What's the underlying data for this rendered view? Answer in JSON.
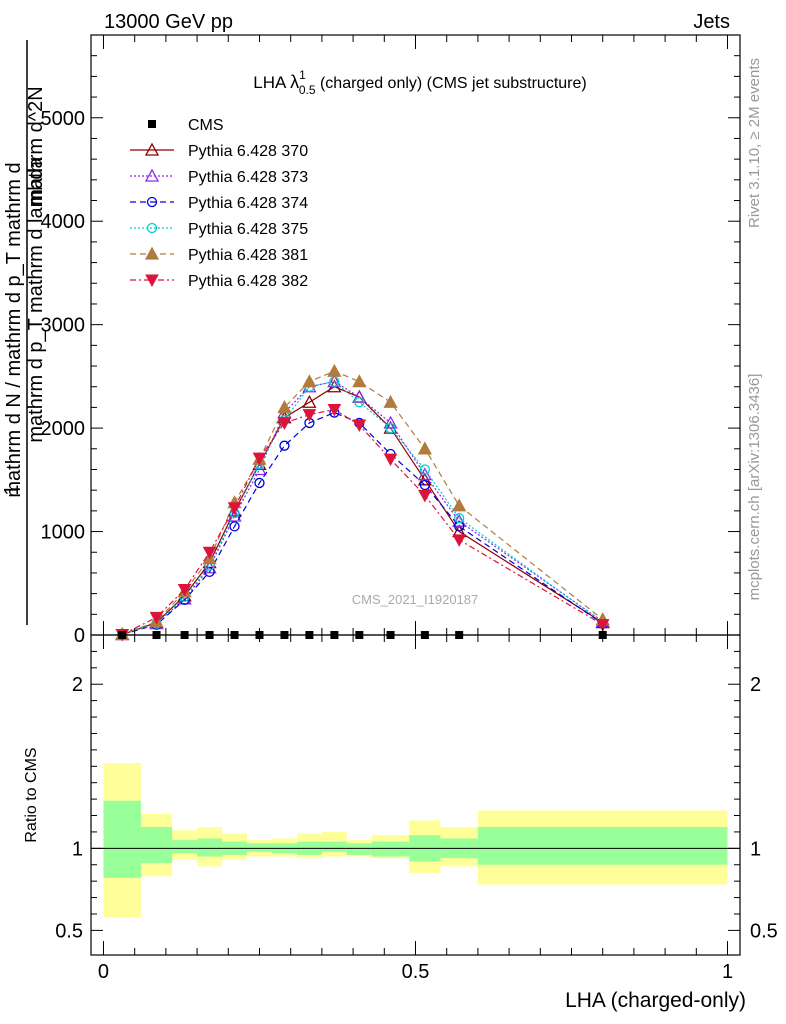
{
  "header": {
    "left": "13000 GeV pp",
    "right": "Jets"
  },
  "side_labels": {
    "top": "Rivet 3.1.10, ≥ 2M events",
    "bottom": "mcplots.cern.ch [arXiv:1306.3436]"
  },
  "watermark": "CMS_2021_I1920187",
  "chart_data": {
    "type": "line",
    "title": {
      "prefix": "LHA ",
      "lambda": "λ",
      "sup": "1",
      "sub": "0.5",
      "suffix": " (charged only) (CMS jet substructure)"
    },
    "xlabel": "LHA (charged-only)",
    "ylabel": {
      "numerator": "1",
      "denominator_lines": [
        "mathrm d N / mathrm d p_T mathrm d",
        "mathrm d^2N",
        "mathrm d p_T mathrm d lambda"
      ]
    },
    "ratio_ylabel": "Ratio to CMS",
    "xlim": [
      -0.02,
      1.02
    ],
    "ylim": [
      0,
      5800
    ],
    "ratio_ylim": [
      0.35,
      2.3
    ],
    "x_ticks": [
      0,
      0.5,
      1
    ],
    "x_tick_labels": [
      "0",
      "0.5",
      "1"
    ],
    "y_ticks": [
      0,
      1000,
      2000,
      3000,
      4000,
      5000
    ],
    "y_tick_labels": [
      "0",
      "1000",
      "2000",
      "3000",
      "4000",
      "5000"
    ],
    "ratio_ticks": [
      0.5,
      1,
      2
    ],
    "ratio_tick_labels": [
      "0.5",
      "1",
      "2"
    ],
    "bins": [
      [
        0,
        0.06
      ],
      [
        0.06,
        0.11
      ],
      [
        0.11,
        0.15
      ],
      [
        0.15,
        0.19
      ],
      [
        0.19,
        0.23
      ],
      [
        0.23,
        0.27
      ],
      [
        0.27,
        0.31
      ],
      [
        0.31,
        0.35
      ],
      [
        0.35,
        0.39
      ],
      [
        0.39,
        0.43
      ],
      [
        0.43,
        0.49
      ],
      [
        0.49,
        0.54
      ],
      [
        0.54,
        0.6
      ],
      [
        0.6,
        1.0
      ]
    ],
    "band_stat": [
      [
        0.82,
        1.29
      ],
      [
        0.91,
        1.13
      ],
      [
        0.97,
        1.05
      ],
      [
        0.95,
        1.06
      ],
      [
        0.96,
        1.04
      ],
      [
        0.98,
        1.03
      ],
      [
        0.97,
        1.03
      ],
      [
        0.96,
        1.04
      ],
      [
        0.98,
        1.04
      ],
      [
        0.96,
        1.03
      ],
      [
        0.95,
        1.04
      ],
      [
        0.92,
        1.08
      ],
      [
        0.94,
        1.06
      ],
      [
        0.9,
        1.13
      ]
    ],
    "band_syst": [
      [
        0.58,
        1.52
      ],
      [
        0.83,
        1.21
      ],
      [
        0.93,
        1.11
      ],
      [
        0.89,
        1.13
      ],
      [
        0.93,
        1.09
      ],
      [
        0.95,
        1.05
      ],
      [
        0.95,
        1.06
      ],
      [
        0.94,
        1.09
      ],
      [
        0.95,
        1.1
      ],
      [
        0.95,
        1.05
      ],
      [
        0.94,
        1.08
      ],
      [
        0.85,
        1.17
      ],
      [
        0.89,
        1.13
      ],
      [
        0.78,
        1.23
      ]
    ],
    "data": {
      "name": "CMS",
      "x": [
        0.03,
        0.085,
        0.13,
        0.17,
        0.21,
        0.25,
        0.29,
        0.33,
        0.37,
        0.41,
        0.46,
        0.515,
        0.57,
        0.8
      ],
      "y": [
        0,
        0,
        0,
        0,
        0,
        0,
        0,
        0,
        0,
        0,
        0,
        0,
        0,
        0
      ]
    },
    "series": [
      {
        "name": "Pythia 6.428 370",
        "color": "#8b0000",
        "dash": "",
        "marker": "triangle-open",
        "x": [
          0.03,
          0.085,
          0.13,
          0.17,
          0.21,
          0.25,
          0.29,
          0.33,
          0.37,
          0.41,
          0.46,
          0.515,
          0.57,
          0.8
        ],
        "y": [
          5,
          120,
          380,
          700,
          1200,
          1650,
          2100,
          2250,
          2400,
          2300,
          2000,
          1500,
          1000,
          120
        ]
      },
      {
        "name": "Pythia 6.428 373",
        "color": "#8a2be2",
        "dash": "2,2",
        "marker": "triangle-open",
        "x": [
          0.03,
          0.085,
          0.13,
          0.17,
          0.21,
          0.25,
          0.29,
          0.33,
          0.37,
          0.41,
          0.46,
          0.515,
          0.57,
          0.8
        ],
        "y": [
          5,
          110,
          350,
          650,
          1150,
          1600,
          2150,
          2400,
          2450,
          2300,
          2050,
          1550,
          1100,
          130
        ]
      },
      {
        "name": "Pythia 6.428 374",
        "color": "#0000dd",
        "dash": "6,4",
        "marker": "circle-open",
        "x": [
          0.03,
          0.085,
          0.13,
          0.17,
          0.21,
          0.25,
          0.29,
          0.33,
          0.37,
          0.41,
          0.46,
          0.515,
          0.57,
          0.8
        ],
        "y": [
          5,
          100,
          340,
          610,
          1050,
          1470,
          1830,
          2050,
          2150,
          2050,
          1750,
          1450,
          1050,
          110
        ]
      },
      {
        "name": "Pythia 6.428 375",
        "color": "#00ced1",
        "dash": "2,2",
        "marker": "circle-open",
        "x": [
          0.03,
          0.085,
          0.13,
          0.17,
          0.21,
          0.25,
          0.29,
          0.33,
          0.37,
          0.41,
          0.46,
          0.515,
          0.57,
          0.8
        ],
        "y": [
          5,
          110,
          370,
          670,
          1180,
          1650,
          2080,
          2400,
          2450,
          2250,
          2000,
          1600,
          1130,
          120
        ]
      },
      {
        "name": "Pythia 6.428 381",
        "color": "#b07b3c",
        "dash": "6,4",
        "marker": "triangle-filled",
        "x": [
          0.03,
          0.085,
          0.13,
          0.17,
          0.21,
          0.25,
          0.29,
          0.33,
          0.37,
          0.41,
          0.46,
          0.515,
          0.57,
          0.8
        ],
        "y": [
          5,
          130,
          420,
          740,
          1280,
          1700,
          2200,
          2450,
          2550,
          2450,
          2250,
          1800,
          1250,
          150
        ]
      },
      {
        "name": "Pythia 6.428 382",
        "color": "#dc143c",
        "dash": "6,3,2,3",
        "marker": "triangle-down-filled",
        "x": [
          0.03,
          0.085,
          0.13,
          0.17,
          0.21,
          0.25,
          0.29,
          0.33,
          0.37,
          0.41,
          0.46,
          0.515,
          0.57,
          0.8
        ],
        "y": [
          5,
          170,
          440,
          800,
          1230,
          1710,
          2050,
          2130,
          2180,
          2030,
          1700,
          1350,
          920,
          100
        ]
      }
    ],
    "legend_placement": "top-left"
  }
}
